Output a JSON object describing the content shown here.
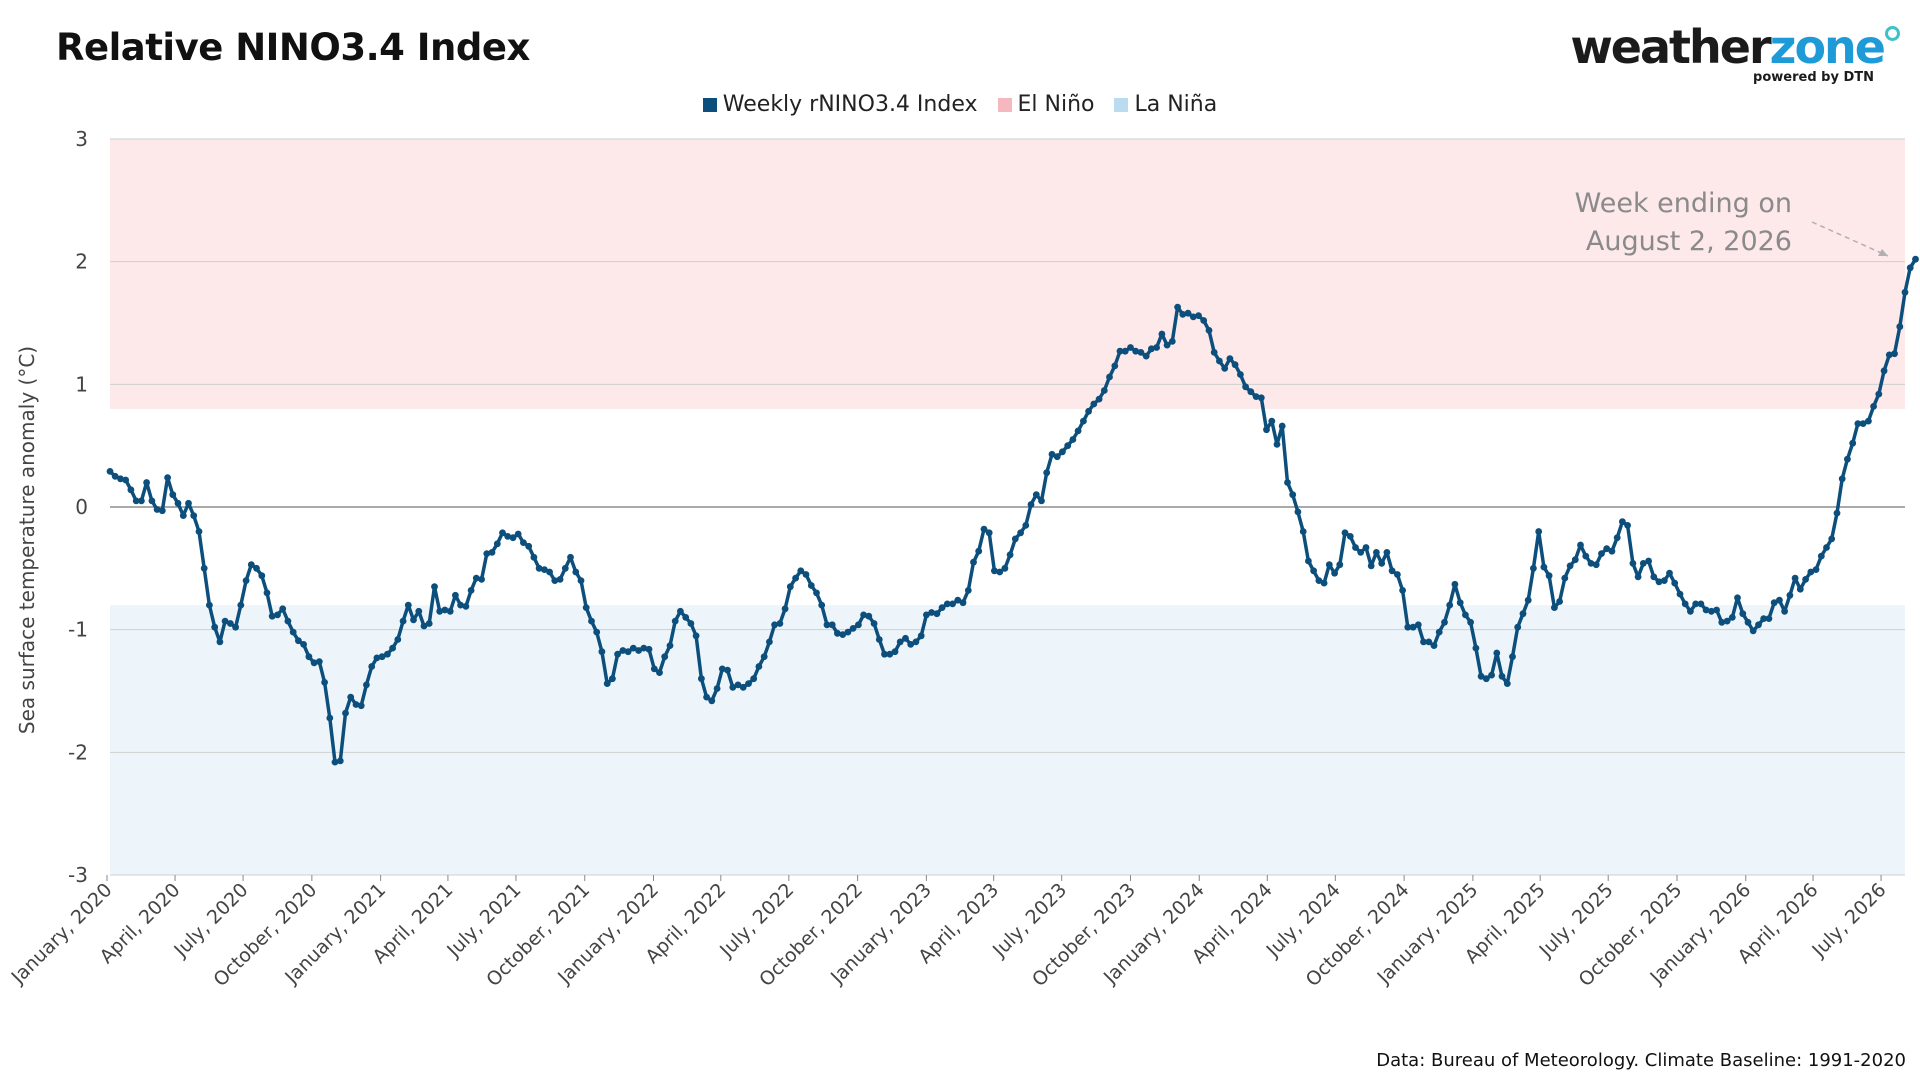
{
  "header": {
    "title": "Relative NINO3.4 Index"
  },
  "brand": {
    "name_part1": "weather",
    "name_part2": "zone",
    "tagline": "powered by DTN"
  },
  "footer": {
    "source": "Data: Bureau of Meteorology. Climate Baseline: 1991-2020"
  },
  "colors": {
    "line": "#0d4f7c",
    "el_nino_band": "#fde8ea",
    "la_nina_band": "#edf5fb",
    "el_nino_swatch": "#f6b8bf",
    "la_nina_swatch": "#b9dcf0"
  },
  "chart_data": {
    "type": "line",
    "title": "Relative NINO3.4 Index",
    "ylabel": "Sea surface temperature anomaly (°C)",
    "xlabel": "",
    "ylim": [
      -3,
      3
    ],
    "yticks": [
      3,
      2,
      1,
      0,
      -1,
      -2,
      -3
    ],
    "ytick_labels": [
      "3",
      "2",
      "1",
      "0",
      "-1",
      "-2",
      "-3"
    ],
    "x_start": "2020-01-05",
    "x_end": "2026-08-02",
    "xticks": [
      {
        "date": "2020-01-01",
        "label": "January, 2020"
      },
      {
        "date": "2020-04-01",
        "label": "April, 2020"
      },
      {
        "date": "2020-07-01",
        "label": "July, 2020"
      },
      {
        "date": "2020-10-01",
        "label": "October, 2020"
      },
      {
        "date": "2021-01-01",
        "label": "January, 2021"
      },
      {
        "date": "2021-04-01",
        "label": "April, 2021"
      },
      {
        "date": "2021-07-01",
        "label": "July, 2021"
      },
      {
        "date": "2021-10-01",
        "label": "October, 2021"
      },
      {
        "date": "2022-01-01",
        "label": "January, 2022"
      },
      {
        "date": "2022-04-01",
        "label": "April, 2022"
      },
      {
        "date": "2022-07-01",
        "label": "July, 2022"
      },
      {
        "date": "2022-10-01",
        "label": "October, 2022"
      },
      {
        "date": "2023-01-01",
        "label": "January, 2023"
      },
      {
        "date": "2023-04-01",
        "label": "April, 2023"
      },
      {
        "date": "2023-07-01",
        "label": "July, 2023"
      },
      {
        "date": "2023-10-01",
        "label": "October, 2023"
      },
      {
        "date": "2024-01-01",
        "label": "January, 2024"
      },
      {
        "date": "2024-04-01",
        "label": "April, 2024"
      },
      {
        "date": "2024-07-01",
        "label": "July, 2024"
      },
      {
        "date": "2024-10-01",
        "label": "October, 2024"
      },
      {
        "date": "2025-01-01",
        "label": "January, 2025"
      },
      {
        "date": "2025-04-01",
        "label": "April, 2025"
      },
      {
        "date": "2025-07-01",
        "label": "July, 2025"
      },
      {
        "date": "2025-10-01",
        "label": "October, 2025"
      },
      {
        "date": "2026-01-01",
        "label": "January, 2026"
      },
      {
        "date": "2026-04-01",
        "label": "April, 2026"
      },
      {
        "date": "2026-07-01",
        "label": "July, 2026"
      }
    ],
    "bands": [
      {
        "name": "El Niño",
        "from": 0.8,
        "to": 3
      },
      {
        "name": "La Niña",
        "from": -3,
        "to": -0.8
      }
    ],
    "legend": [
      {
        "label": "Weekly rNINO3.4 Index",
        "kind": "line"
      },
      {
        "label": "El Niño",
        "kind": "el_nino"
      },
      {
        "label": "La Niña",
        "kind": "la_nina"
      }
    ],
    "legend_position": "top-center",
    "grid": true,
    "annotation": {
      "line1": "Week ending on",
      "line2": "August 2, 2026"
    },
    "series": [
      {
        "name": "Weekly rNINO3.4 Index",
        "frequency": "weekly",
        "values": [
          0.29,
          0.25,
          0.23,
          0.22,
          0.14,
          0.05,
          0.05,
          0.2,
          0.05,
          -0.02,
          -0.03,
          0.24,
          0.1,
          0.03,
          -0.07,
          0.03,
          -0.07,
          -0.2,
          -0.5,
          -0.8,
          -0.98,
          -1.1,
          -0.93,
          -0.95,
          -0.98,
          -0.8,
          -0.6,
          -0.47,
          -0.5,
          -0.56,
          -0.7,
          -0.89,
          -0.88,
          -0.83,
          -0.93,
          -1.02,
          -1.09,
          -1.12,
          -1.22,
          -1.27,
          -1.26,
          -1.43,
          -1.72,
          -2.08,
          -2.07,
          -1.68,
          -1.55,
          -1.61,
          -1.62,
          -1.45,
          -1.3,
          -1.23,
          -1.22,
          -1.2,
          -1.15,
          -1.08,
          -0.93,
          -0.8,
          -0.92,
          -0.85,
          -0.97,
          -0.95,
          -0.65,
          -0.85,
          -0.84,
          -0.85,
          -0.72,
          -0.8,
          -0.81,
          -0.68,
          -0.58,
          -0.59,
          -0.38,
          -0.37,
          -0.3,
          -0.21,
          -0.24,
          -0.25,
          -0.22,
          -0.29,
          -0.32,
          -0.41,
          -0.5,
          -0.51,
          -0.53,
          -0.6,
          -0.59,
          -0.5,
          -0.41,
          -0.53,
          -0.6,
          -0.82,
          -0.93,
          -1.02,
          -1.18,
          -1.44,
          -1.4,
          -1.2,
          -1.17,
          -1.18,
          -1.15,
          -1.17,
          -1.15,
          -1.16,
          -1.32,
          -1.35,
          -1.22,
          -1.13,
          -0.93,
          -0.85,
          -0.9,
          -0.95,
          -1.05,
          -1.4,
          -1.55,
          -1.58,
          -1.48,
          -1.32,
          -1.33,
          -1.47,
          -1.45,
          -1.47,
          -1.44,
          -1.4,
          -1.3,
          -1.22,
          -1.1,
          -0.96,
          -0.95,
          -0.83,
          -0.65,
          -0.58,
          -0.52,
          -0.55,
          -0.64,
          -0.7,
          -0.8,
          -0.96,
          -0.96,
          -1.03,
          -1.04,
          -1.02,
          -0.99,
          -0.96,
          -0.88,
          -0.89,
          -0.95,
          -1.08,
          -1.2,
          -1.2,
          -1.18,
          -1.1,
          -1.07,
          -1.12,
          -1.1,
          -1.05,
          -0.88,
          -0.86,
          -0.87,
          -0.82,
          -0.79,
          -0.79,
          -0.76,
          -0.78,
          -0.68,
          -0.45,
          -0.36,
          -0.18,
          -0.21,
          -0.52,
          -0.53,
          -0.5,
          -0.39,
          -0.26,
          -0.21,
          -0.15,
          0.02,
          0.1,
          0.05,
          0.28,
          0.43,
          0.41,
          0.45,
          0.5,
          0.55,
          0.62,
          0.7,
          0.78,
          0.84,
          0.88,
          0.95,
          1.06,
          1.15,
          1.27,
          1.27,
          1.3,
          1.27,
          1.26,
          1.23,
          1.29,
          1.3,
          1.41,
          1.32,
          1.35,
          1.63,
          1.57,
          1.58,
          1.55,
          1.56,
          1.52,
          1.44,
          1.26,
          1.19,
          1.13,
          1.21,
          1.16,
          1.08,
          0.98,
          0.94,
          0.9,
          0.89,
          0.63,
          0.7,
          0.51,
          0.66,
          0.2,
          0.1,
          -0.04,
          -0.2,
          -0.44,
          -0.52,
          -0.6,
          -0.62,
          -0.47,
          -0.54,
          -0.47,
          -0.21,
          -0.24,
          -0.33,
          -0.37,
          -0.33,
          -0.48,
          -0.37,
          -0.46,
          -0.37,
          -0.52,
          -0.55,
          -0.68,
          -0.98,
          -0.98,
          -0.96,
          -1.1,
          -1.1,
          -1.13,
          -1.02,
          -0.94,
          -0.8,
          -0.63,
          -0.78,
          -0.88,
          -0.94,
          -1.15,
          -1.38,
          -1.4,
          -1.37,
          -1.19,
          -1.38,
          -1.44,
          -1.22,
          -0.98,
          -0.87,
          -0.76,
          -0.5,
          -0.2,
          -0.49,
          -0.56,
          -0.82,
          -0.77,
          -0.58,
          -0.48,
          -0.43,
          -0.31,
          -0.4,
          -0.46,
          -0.47,
          -0.38,
          -0.34,
          -0.36,
          -0.25,
          -0.12,
          -0.15,
          -0.46,
          -0.57,
          -0.46,
          -0.44,
          -0.57,
          -0.61,
          -0.6,
          -0.54,
          -0.62,
          -0.71,
          -0.79,
          -0.85,
          -0.79,
          -0.79,
          -0.84,
          -0.85,
          -0.84,
          -0.94,
          -0.93,
          -0.9,
          -0.74,
          -0.87,
          -0.94,
          -1.01,
          -0.96,
          -0.91,
          -0.91,
          -0.78,
          -0.76,
          -0.85,
          -0.72,
          -0.58,
          -0.67,
          -0.59,
          -0.53,
          -0.51,
          -0.4,
          -0.33,
          -0.26,
          -0.05,
          0.23,
          0.39,
          0.52,
          0.68,
          0.68,
          0.7,
          0.82,
          0.92,
          1.11,
          1.24,
          1.25,
          1.47,
          1.75,
          1.95,
          2.02
        ]
      }
    ]
  }
}
